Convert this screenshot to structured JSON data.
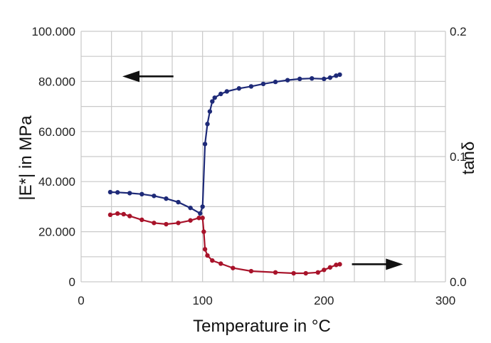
{
  "chart_data": {
    "type": "line",
    "xlabel": "Temperature in °C",
    "ylabel": "|E*| in MPa",
    "y2label": "tanδ",
    "xlim": [
      0,
      300
    ],
    "ylim": [
      0,
      100000
    ],
    "y2lim": [
      0,
      0.2
    ],
    "x_ticks": [
      "0",
      "100",
      "200",
      "300"
    ],
    "y_ticks": [
      "0",
      "20.000",
      "40.000",
      "60.000",
      "80.000",
      "100.000"
    ],
    "y2_ticks": [
      "0.0",
      "0.1",
      "0.2"
    ],
    "grid": true,
    "arrows": [
      {
        "direction": "left",
        "refers_to": "left axis",
        "x": [
          76,
          34
        ],
        "y": 82000
      },
      {
        "direction": "right",
        "refers_to": "right axis",
        "x": [
          223,
          265
        ],
        "y": 7000
      }
    ],
    "series": [
      {
        "axis": "left",
        "color": "#1e2a78",
        "x": [
          24,
          30,
          40,
          50,
          60,
          70,
          80,
          90,
          98,
          100,
          102,
          104,
          106,
          108,
          110,
          115,
          120,
          130,
          140,
          150,
          160,
          170,
          180,
          190,
          200,
          205,
          210,
          213
        ],
        "y": [
          35800,
          35700,
          35400,
          35000,
          34300,
          33200,
          31800,
          29500,
          27300,
          30000,
          55000,
          63000,
          68000,
          72000,
          73500,
          75000,
          76000,
          77200,
          78000,
          79000,
          79800,
          80500,
          81000,
          81200,
          81000,
          81500,
          82300,
          82700
        ]
      },
      {
        "axis": "right",
        "color": "#a8132a",
        "x": [
          24,
          30,
          35,
          40,
          50,
          60,
          70,
          80,
          90,
          97,
          100,
          101,
          102,
          104,
          108,
          115,
          125,
          140,
          160,
          175,
          185,
          195,
          200,
          205,
          210,
          213
        ],
        "y": [
          0.0535,
          0.0545,
          0.054,
          0.0525,
          0.0495,
          0.047,
          0.046,
          0.047,
          0.049,
          0.051,
          0.051,
          0.04,
          0.026,
          0.021,
          0.017,
          0.0145,
          0.011,
          0.0085,
          0.0075,
          0.0068,
          0.0068,
          0.0075,
          0.0095,
          0.0115,
          0.0135,
          0.014
        ]
      }
    ]
  }
}
